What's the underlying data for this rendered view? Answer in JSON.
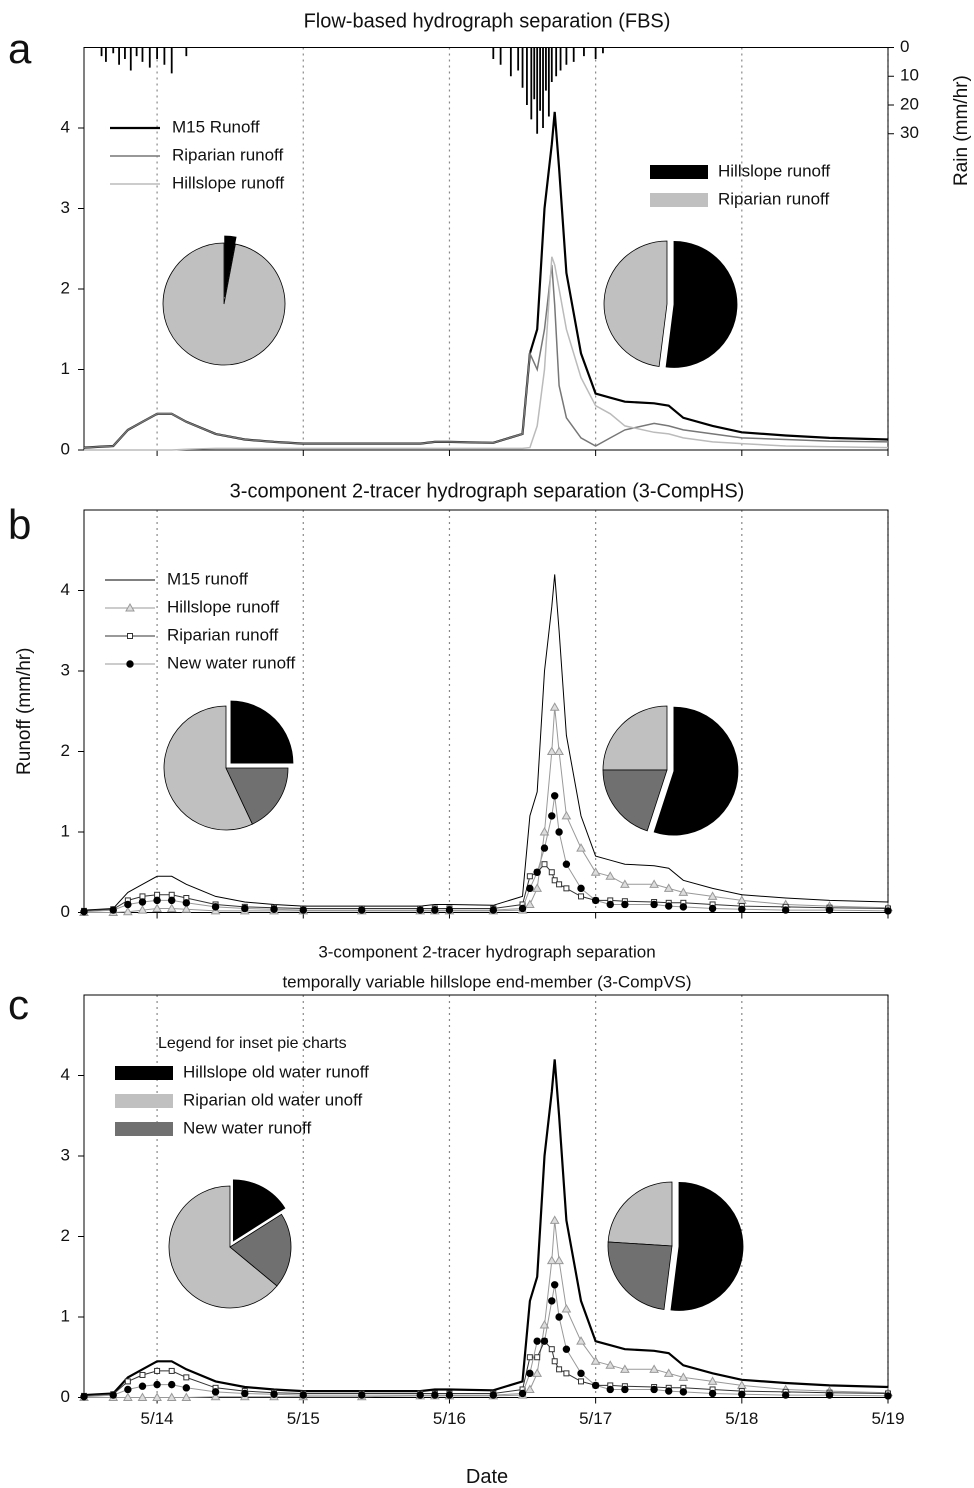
{
  "chart_data": [
    {
      "type": "line",
      "panel_label": "a",
      "title": "Flow-based hydrograph separation (FBS)",
      "xlim": [
        13.5,
        19
      ],
      "xticks": [
        14,
        15,
        16,
        17,
        18,
        19
      ],
      "xgrid": true,
      "ylim": [
        0,
        5
      ],
      "yticks": [
        0,
        1,
        2,
        3,
        4
      ],
      "y2label": "Rain (mm/hr)",
      "y2lim": [
        0,
        140
      ],
      "y2ticks": [
        0,
        10,
        20,
        30
      ],
      "y2_inverted": true,
      "x": [
        13.5,
        13.7,
        13.8,
        13.9,
        14.0,
        14.1,
        14.2,
        14.4,
        14.6,
        14.8,
        15.0,
        15.4,
        15.8,
        15.9,
        16.0,
        16.3,
        16.5,
        16.55,
        16.6,
        16.65,
        16.7,
        16.72,
        16.75,
        16.8,
        16.9,
        17.0,
        17.1,
        17.2,
        17.4,
        17.5,
        17.6,
        17.8,
        18.0,
        18.3,
        18.6,
        19.0
      ],
      "series": [
        {
          "name": "M15 Runoff",
          "color": "#000000",
          "width": 2.2,
          "values": [
            0.03,
            0.05,
            0.25,
            0.35,
            0.45,
            0.45,
            0.35,
            0.2,
            0.13,
            0.1,
            0.08,
            0.08,
            0.08,
            0.1,
            0.1,
            0.09,
            0.2,
            1.2,
            1.5,
            3.0,
            3.8,
            4.2,
            3.5,
            2.2,
            1.2,
            0.7,
            0.65,
            0.6,
            0.58,
            0.55,
            0.4,
            0.3,
            0.22,
            0.18,
            0.15,
            0.13
          ]
        },
        {
          "name": "Riparian runoff",
          "color": "#777777",
          "width": 1.5,
          "values": [
            0.03,
            0.05,
            0.25,
            0.35,
            0.45,
            0.45,
            0.35,
            0.2,
            0.13,
            0.1,
            0.08,
            0.08,
            0.08,
            0.1,
            0.1,
            0.09,
            0.2,
            1.2,
            1.0,
            1.5,
            2.3,
            1.8,
            0.8,
            0.4,
            0.15,
            0.05,
            0.15,
            0.25,
            0.33,
            0.3,
            0.25,
            0.2,
            0.15,
            0.13,
            0.11,
            0.1
          ]
        },
        {
          "name": "Hillslope runoff",
          "color": "#bbbbbb",
          "width": 1.5,
          "values": [
            0,
            0,
            0,
            0,
            0,
            0,
            0.01,
            0.02,
            0.02,
            0.02,
            0.02,
            0.02,
            0.02,
            0.02,
            0.02,
            0.02,
            0.02,
            0.03,
            0.3,
            1.0,
            2.4,
            2.3,
            2.0,
            1.5,
            0.9,
            0.55,
            0.45,
            0.3,
            0.22,
            0.2,
            0.15,
            0.1,
            0.08,
            0.05,
            0.04,
            0.03
          ]
        }
      ],
      "rain": {
        "color": "#000000",
        "x": [
          13.62,
          13.65,
          13.7,
          13.74,
          13.78,
          13.82,
          13.86,
          13.9,
          13.95,
          14.0,
          14.05,
          14.1,
          14.2,
          16.3,
          16.35,
          16.42,
          16.47,
          16.5,
          16.53,
          16.56,
          16.58,
          16.6,
          16.62,
          16.64,
          16.66,
          16.68,
          16.7,
          16.73,
          16.76,
          16.8,
          16.85,
          16.92,
          17.0,
          17.05
        ],
        "values": [
          3,
          5,
          2,
          6,
          4,
          8,
          3,
          5,
          7,
          4,
          6,
          9,
          3,
          4,
          6,
          10,
          8,
          14,
          20,
          25,
          18,
          30,
          22,
          28,
          15,
          24,
          12,
          10,
          8,
          6,
          5,
          3,
          4,
          2
        ]
      },
      "pie_labels": [
        "Hillslope runoff",
        "Riparian runoff"
      ],
      "pie_colors": [
        "#000000",
        "#c0c0c0"
      ],
      "pies": [
        {
          "values": [
            3,
            97
          ]
        },
        {
          "values": [
            52,
            48
          ]
        }
      ]
    },
    {
      "type": "line",
      "panel_label": "b",
      "title": "3-component 2-tracer hydrograph separation (3-CompHS)",
      "ylabel": "Runoff (mm/hr)",
      "xlim": [
        13.5,
        19
      ],
      "xticks": [
        14,
        15,
        16,
        17,
        18,
        19
      ],
      "xgrid": true,
      "ylim": [
        0,
        5
      ],
      "yticks": [
        0,
        1,
        2,
        3,
        4
      ],
      "x": [
        13.5,
        13.7,
        13.8,
        13.9,
        14.0,
        14.1,
        14.2,
        14.4,
        14.6,
        14.8,
        15.0,
        15.4,
        15.8,
        15.9,
        16.0,
        16.3,
        16.5,
        16.55,
        16.6,
        16.65,
        16.7,
        16.72,
        16.75,
        16.8,
        16.9,
        17.0,
        17.1,
        17.2,
        17.4,
        17.5,
        17.6,
        17.8,
        18.0,
        18.3,
        18.6,
        19.0
      ],
      "series": [
        {
          "name": "M15 runoff",
          "color": "#000000",
          "width": 1,
          "values": [
            0.03,
            0.05,
            0.25,
            0.35,
            0.45,
            0.45,
            0.35,
            0.2,
            0.13,
            0.1,
            0.08,
            0.08,
            0.08,
            0.1,
            0.1,
            0.09,
            0.2,
            1.2,
            1.5,
            3.0,
            3.8,
            4.2,
            3.5,
            2.2,
            1.2,
            0.7,
            0.65,
            0.6,
            0.58,
            0.55,
            0.4,
            0.3,
            0.22,
            0.18,
            0.15,
            0.13
          ]
        },
        {
          "name": "Hillslope runoff",
          "color": "#999999",
          "width": 1,
          "marker": "triangle",
          "marker_fill": "#dddddd",
          "values": [
            0,
            0,
            0.01,
            0.03,
            0.05,
            0.05,
            0.04,
            0.02,
            0.02,
            0.02,
            0.02,
            0.02,
            0.02,
            0.02,
            0.02,
            0.02,
            0.03,
            0.1,
            0.3,
            1.0,
            2.0,
            2.55,
            2.0,
            1.2,
            0.8,
            0.5,
            0.45,
            0.35,
            0.35,
            0.3,
            0.25,
            0.2,
            0.15,
            0.1,
            0.08,
            0.06
          ]
        },
        {
          "name": "Riparian runoff",
          "color": "#333333",
          "width": 1,
          "marker": "square",
          "marker_fill": "#ffffff",
          "values": [
            0.02,
            0.04,
            0.15,
            0.2,
            0.22,
            0.22,
            0.18,
            0.1,
            0.07,
            0.06,
            0.05,
            0.05,
            0.05,
            0.05,
            0.05,
            0.05,
            0.1,
            0.45,
            0.5,
            0.6,
            0.5,
            0.4,
            0.35,
            0.3,
            0.2,
            0.15,
            0.15,
            0.14,
            0.13,
            0.12,
            0.12,
            0.1,
            0.08,
            0.07,
            0.06,
            0.05
          ]
        },
        {
          "name": "New water runoff",
          "color": "#999999",
          "width": 1,
          "marker": "circle",
          "marker_fill": "#000000",
          "values": [
            0.01,
            0.03,
            0.1,
            0.13,
            0.15,
            0.15,
            0.12,
            0.07,
            0.05,
            0.04,
            0.03,
            0.03,
            0.03,
            0.03,
            0.03,
            0.03,
            0.05,
            0.3,
            0.5,
            0.8,
            1.2,
            1.45,
            1.0,
            0.6,
            0.3,
            0.15,
            0.1,
            0.1,
            0.1,
            0.08,
            0.07,
            0.05,
            0.04,
            0.03,
            0.03,
            0.02
          ]
        }
      ],
      "pie_colors": [
        "#000000",
        "#c0c0c0",
        "#707070"
      ],
      "pies": [
        {
          "values": [
            25,
            57,
            18
          ]
        },
        {
          "values": [
            55,
            25,
            20
          ]
        }
      ]
    },
    {
      "type": "line",
      "panel_label": "c",
      "title": [
        "3-component 2-tracer hydrograph separation",
        "temporally variable hillslope end-member (3-CompVS)"
      ],
      "xlabel": "Date",
      "xlim": [
        13.5,
        19
      ],
      "xticks": [
        {
          "value": 14,
          "label": "5/14"
        },
        {
          "value": 15,
          "label": "5/15"
        },
        {
          "value": 16,
          "label": "5/16"
        },
        {
          "value": 17,
          "label": "5/17"
        },
        {
          "value": 18,
          "label": "5/18"
        },
        {
          "value": 19,
          "label": "5/19"
        }
      ],
      "xgrid": true,
      "ylim": [
        0,
        5
      ],
      "yticks": [
        0,
        1,
        2,
        3,
        4
      ],
      "x": [
        13.5,
        13.7,
        13.8,
        13.9,
        14.0,
        14.1,
        14.2,
        14.4,
        14.6,
        14.8,
        15.0,
        15.4,
        15.8,
        15.9,
        16.0,
        16.3,
        16.5,
        16.55,
        16.6,
        16.65,
        16.7,
        16.72,
        16.75,
        16.8,
        16.9,
        17.0,
        17.1,
        17.2,
        17.4,
        17.5,
        17.6,
        17.8,
        18.0,
        18.3,
        18.6,
        19.0
      ],
      "series": [
        {
          "name": "M15 runoff",
          "color": "#000000",
          "width": 2.2,
          "values": [
            0.03,
            0.05,
            0.25,
            0.35,
            0.45,
            0.45,
            0.35,
            0.2,
            0.13,
            0.1,
            0.08,
            0.08,
            0.08,
            0.1,
            0.1,
            0.09,
            0.2,
            1.2,
            1.5,
            3.0,
            3.8,
            4.2,
            3.5,
            2.2,
            1.2,
            0.7,
            0.65,
            0.6,
            0.58,
            0.55,
            0.4,
            0.3,
            0.22,
            0.18,
            0.15,
            0.13
          ]
        },
        {
          "name": "Hillslope runoff",
          "color": "#999999",
          "width": 1,
          "marker": "triangle",
          "marker_fill": "#dddddd",
          "values": [
            0,
            0,
            0,
            0,
            0,
            0,
            0,
            0.01,
            0.01,
            0.01,
            0.01,
            0.01,
            0.02,
            0.02,
            0.02,
            0.02,
            0.03,
            0.1,
            0.3,
            0.9,
            1.7,
            2.2,
            1.7,
            1.1,
            0.7,
            0.45,
            0.4,
            0.35,
            0.35,
            0.3,
            0.25,
            0.2,
            0.15,
            0.1,
            0.08,
            0.06
          ]
        },
        {
          "name": "Riparian runoff",
          "color": "#333333",
          "width": 1,
          "marker": "square",
          "marker_fill": "#ffffff",
          "values": [
            0.02,
            0.04,
            0.2,
            0.28,
            0.33,
            0.33,
            0.25,
            0.12,
            0.08,
            0.06,
            0.05,
            0.05,
            0.05,
            0.05,
            0.05,
            0.05,
            0.1,
            0.5,
            0.5,
            0.7,
            0.6,
            0.45,
            0.35,
            0.3,
            0.2,
            0.15,
            0.15,
            0.14,
            0.13,
            0.12,
            0.12,
            0.1,
            0.08,
            0.07,
            0.06,
            0.05
          ]
        },
        {
          "name": "New water runoff",
          "color": "#999999",
          "width": 1,
          "marker": "circle",
          "marker_fill": "#000000",
          "values": [
            0.01,
            0.03,
            0.1,
            0.14,
            0.16,
            0.16,
            0.12,
            0.07,
            0.05,
            0.04,
            0.03,
            0.03,
            0.03,
            0.03,
            0.03,
            0.03,
            0.05,
            0.3,
            0.7,
            0.7,
            1.2,
            1.4,
            1.0,
            0.6,
            0.3,
            0.15,
            0.1,
            0.1,
            0.1,
            0.08,
            0.07,
            0.05,
            0.04,
            0.03,
            0.03,
            0.02
          ]
        }
      ],
      "pie_legend_title": "Legend for inset pie charts",
      "pie_labels": [
        "Hillslope old water runoff",
        "Riparian old water unoff",
        "New water runoff"
      ],
      "pie_colors": [
        "#000000",
        "#c0c0c0",
        "#707070"
      ],
      "pies": [
        {
          "values": [
            16,
            64,
            20
          ]
        },
        {
          "values": [
            52,
            24,
            24
          ]
        }
      ]
    }
  ]
}
